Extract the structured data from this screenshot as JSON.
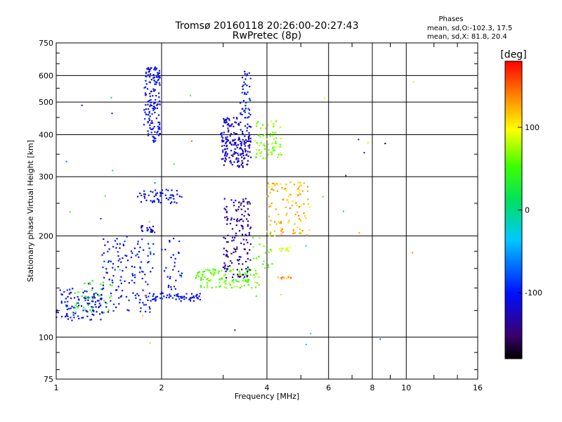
{
  "chart_data": {
    "type": "scatter",
    "title": "Tromsø 20160118 20:26:00-20:27:43",
    "subtitle": "RwPretec (8p)",
    "xlabel": "Frequency [MHz]",
    "ylabel": "Stationary phase Virtual Height [km]",
    "x_scale": "log",
    "y_scale": "log",
    "xlim": [
      1,
      16
    ],
    "ylim": [
      75,
      750
    ],
    "x_ticks": [
      {
        "value": 1,
        "label": "1"
      },
      {
        "value": 2,
        "label": "2"
      },
      {
        "value": 4,
        "label": "4"
      },
      {
        "value": 6,
        "label": "6"
      },
      {
        "value": 8,
        "label": "8"
      },
      {
        "value": 10,
        "label": "10"
      },
      {
        "value": 16,
        "label": "16"
      }
    ],
    "y_ticks": [
      {
        "value": 75,
        "label": "75"
      },
      {
        "value": 100,
        "label": "100"
      },
      {
        "value": 200,
        "label": "200"
      },
      {
        "value": 300,
        "label": "300"
      },
      {
        "value": 400,
        "label": "400"
      },
      {
        "value": 500,
        "label": "500"
      },
      {
        "value": 600,
        "label": "600"
      },
      {
        "value": 750,
        "label": "750"
      }
    ],
    "grid": true,
    "legend": {
      "title": "Phases",
      "line1": "mean, sd,O:-102.3, 17.5",
      "line2": "mean, sd,X:  81.8, 20.4"
    },
    "colorbar": {
      "label": "[deg]",
      "range": [
        -180,
        180
      ],
      "ticks": [
        {
          "value": 100,
          "label": "100"
        },
        {
          "value": 0,
          "label": "0"
        },
        {
          "value": -100,
          "label": "-100"
        }
      ]
    },
    "clusters": [
      {
        "f": [
          1.0,
          1.35
        ],
        "h": [
          112,
          140
        ],
        "phase": -110,
        "n": 110
      },
      {
        "f": [
          1.12,
          1.45
        ],
        "h": [
          118,
          150
        ],
        "phase": 40,
        "n": 40
      },
      {
        "f": [
          1.35,
          1.9
        ],
        "h": [
          118,
          200
        ],
        "phase": -105,
        "n": 140
      },
      {
        "f": [
          1.85,
          2.6
        ],
        "h": [
          128,
          135
        ],
        "phase": -105,
        "n": 60
      },
      {
        "f": [
          2.5,
          3.8
        ],
        "h": [
          140,
          160
        ],
        "phase": 60,
        "n": 130
      },
      {
        "f": [
          2.0,
          2.3
        ],
        "h": [
          135,
          200
        ],
        "phase": -110,
        "n": 30
      },
      {
        "f": [
          3.0,
          3.6
        ],
        "h": [
          150,
          260
        ],
        "phase": -135,
        "n": 150
      },
      {
        "f": [
          3.6,
          4.2
        ],
        "h": [
          160,
          210
        ],
        "phase": 60,
        "n": 20
      },
      {
        "f": [
          4.0,
          5.3
        ],
        "h": [
          200,
          290
        ],
        "phase": 120,
        "n": 110
      },
      {
        "f": [
          1.78,
          1.98
        ],
        "h": [
          380,
          640
        ],
        "phase": -105,
        "n": 160
      },
      {
        "f": [
          1.7,
          2.3
        ],
        "h": [
          250,
          275
        ],
        "phase": -108,
        "n": 55
      },
      {
        "f": [
          1.75,
          1.9
        ],
        "h": [
          205,
          215
        ],
        "phase": -115,
        "n": 20
      },
      {
        "f": [
          2.95,
          3.6
        ],
        "h": [
          320,
          450
        ],
        "phase": -120,
        "n": 180
      },
      {
        "f": [
          3.35,
          3.6
        ],
        "h": [
          450,
          620
        ],
        "phase": -105,
        "n": 40
      },
      {
        "f": [
          3.7,
          4.4
        ],
        "h": [
          340,
          440
        ],
        "phase": 70,
        "n": 70
      },
      {
        "f": [
          4.3,
          4.7
        ],
        "h": [
          180,
          185
        ],
        "phase": 90,
        "n": 12
      },
      {
        "f": [
          4.3,
          4.7
        ],
        "h": [
          148,
          152
        ],
        "phase": 130,
        "n": 10
      },
      {
        "f": [
          3.0,
          3.6
        ],
        "h": [
          370,
          390
        ],
        "phase": -130,
        "n": 25
      }
    ]
  }
}
